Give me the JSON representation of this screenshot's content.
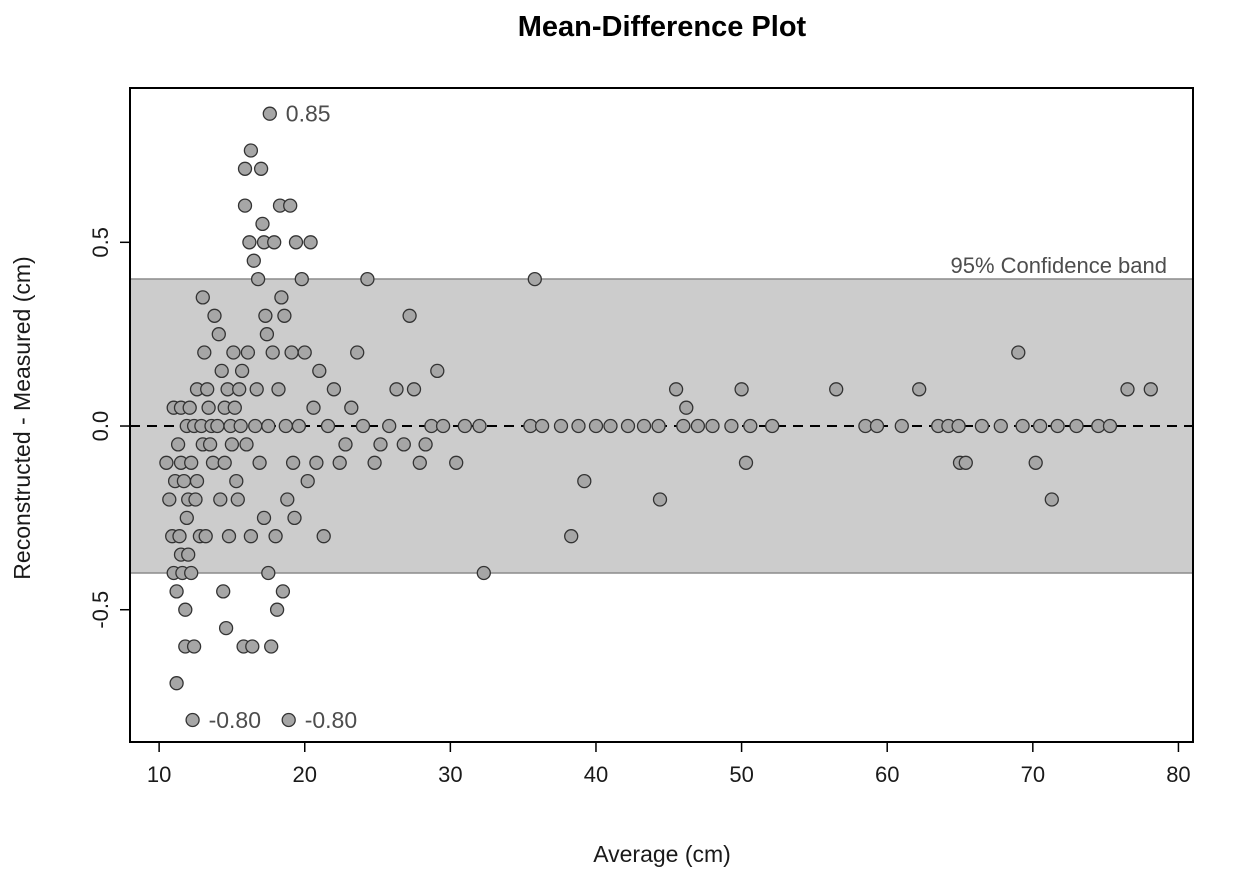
{
  "chart_data": {
    "type": "scatter",
    "title": "Mean-Difference Plot",
    "xlabel": "Average (cm)",
    "ylabel": "Reconstructed - Measured (cm)",
    "xlim": [
      8,
      81
    ],
    "ylim": [
      -0.86,
      0.92
    ],
    "xticks": [
      10,
      20,
      30,
      40,
      50,
      60,
      70,
      80
    ],
    "yticks": [
      -0.5,
      0.0,
      0.5
    ],
    "ytick_labels": [
      "-0.5",
      "0.0",
      "0.5"
    ],
    "grid": false,
    "reference_line": {
      "y": 0,
      "style": "dashed"
    },
    "confidence_band": {
      "lower": -0.4,
      "upper": 0.4,
      "label": "95% Confidence band",
      "color": "#cccccc"
    },
    "annotations": [
      {
        "text": "0.85",
        "x": 17.6,
        "y": 0.85
      },
      {
        "text": "-0.80",
        "x": 12.3,
        "y": -0.8
      },
      {
        "text": "-0.80",
        "x": 18.9,
        "y": -0.8
      }
    ],
    "point_style": {
      "fill": "#a6a6a6",
      "stroke": "#333333"
    },
    "points": [
      [
        10.5,
        -0.1
      ],
      [
        10.7,
        -0.2
      ],
      [
        10.9,
        -0.3
      ],
      [
        11.0,
        0.05
      ],
      [
        11.0,
        -0.4
      ],
      [
        11.1,
        -0.15
      ],
      [
        11.2,
        -0.45
      ],
      [
        11.2,
        -0.7
      ],
      [
        11.3,
        -0.05
      ],
      [
        11.4,
        -0.3
      ],
      [
        11.5,
        0.05
      ],
      [
        11.5,
        -0.1
      ],
      [
        11.5,
        -0.35
      ],
      [
        11.6,
        -0.4
      ],
      [
        11.7,
        -0.15
      ],
      [
        11.8,
        -0.5
      ],
      [
        11.8,
        -0.6
      ],
      [
        11.9,
        0.0
      ],
      [
        11.9,
        -0.25
      ],
      [
        12.0,
        -0.2
      ],
      [
        12.0,
        -0.35
      ],
      [
        12.1,
        0.05
      ],
      [
        12.2,
        -0.1
      ],
      [
        12.2,
        -0.4
      ],
      [
        12.3,
        -0.8
      ],
      [
        12.4,
        0.0
      ],
      [
        12.4,
        -0.6
      ],
      [
        12.5,
        -0.2
      ],
      [
        12.6,
        0.1
      ],
      [
        12.6,
        -0.15
      ],
      [
        12.8,
        -0.3
      ],
      [
        12.9,
        0.0
      ],
      [
        13.0,
        -0.05
      ],
      [
        13.0,
        0.35
      ],
      [
        13.1,
        0.2
      ],
      [
        13.2,
        -0.3
      ],
      [
        13.3,
        0.1
      ],
      [
        13.4,
        0.05
      ],
      [
        13.5,
        -0.05
      ],
      [
        13.6,
        0.0
      ],
      [
        13.7,
        -0.1
      ],
      [
        13.8,
        0.3
      ],
      [
        14.0,
        0.0
      ],
      [
        14.1,
        0.25
      ],
      [
        14.2,
        -0.2
      ],
      [
        14.3,
        0.15
      ],
      [
        14.4,
        -0.45
      ],
      [
        14.5,
        0.05
      ],
      [
        14.5,
        -0.1
      ],
      [
        14.6,
        -0.55
      ],
      [
        14.7,
        0.1
      ],
      [
        14.8,
        -0.3
      ],
      [
        14.9,
        0.0
      ],
      [
        15.0,
        -0.05
      ],
      [
        15.1,
        0.2
      ],
      [
        15.2,
        0.05
      ],
      [
        15.3,
        -0.15
      ],
      [
        15.4,
        -0.2
      ],
      [
        15.5,
        0.1
      ],
      [
        15.6,
        0.0
      ],
      [
        15.7,
        0.15
      ],
      [
        15.8,
        -0.6
      ],
      [
        15.9,
        0.6
      ],
      [
        15.9,
        0.7
      ],
      [
        16.0,
        -0.05
      ],
      [
        16.1,
        0.2
      ],
      [
        16.2,
        0.5
      ],
      [
        16.3,
        0.75
      ],
      [
        16.3,
        -0.3
      ],
      [
        16.4,
        -0.6
      ],
      [
        16.5,
        0.45
      ],
      [
        16.6,
        0.0
      ],
      [
        16.7,
        0.1
      ],
      [
        16.8,
        0.4
      ],
      [
        16.9,
        -0.1
      ],
      [
        17.0,
        0.7
      ],
      [
        17.1,
        0.55
      ],
      [
        17.2,
        0.5
      ],
      [
        17.2,
        -0.25
      ],
      [
        17.3,
        0.3
      ],
      [
        17.4,
        0.25
      ],
      [
        17.5,
        0.0
      ],
      [
        17.5,
        -0.4
      ],
      [
        17.6,
        0.85
      ],
      [
        17.7,
        -0.6
      ],
      [
        17.8,
        0.2
      ],
      [
        17.9,
        0.5
      ],
      [
        18.0,
        -0.3
      ],
      [
        18.1,
        -0.5
      ],
      [
        18.2,
        0.1
      ],
      [
        18.3,
        0.6
      ],
      [
        18.4,
        0.35
      ],
      [
        18.5,
        -0.45
      ],
      [
        18.6,
        0.3
      ],
      [
        18.7,
        0.0
      ],
      [
        18.8,
        -0.2
      ],
      [
        18.9,
        -0.8
      ],
      [
        19.0,
        0.6
      ],
      [
        19.1,
        0.2
      ],
      [
        19.2,
        -0.1
      ],
      [
        19.3,
        -0.25
      ],
      [
        19.4,
        0.5
      ],
      [
        19.6,
        0.0
      ],
      [
        19.8,
        0.4
      ],
      [
        20.0,
        0.2
      ],
      [
        20.2,
        -0.15
      ],
      [
        20.4,
        0.5
      ],
      [
        20.6,
        0.05
      ],
      [
        20.8,
        -0.1
      ],
      [
        21.0,
        0.15
      ],
      [
        21.3,
        -0.3
      ],
      [
        21.6,
        0.0
      ],
      [
        22.0,
        0.1
      ],
      [
        22.4,
        -0.1
      ],
      [
        22.8,
        -0.05
      ],
      [
        23.2,
        0.05
      ],
      [
        23.6,
        0.2
      ],
      [
        24.0,
        0.0
      ],
      [
        24.3,
        0.4
      ],
      [
        24.8,
        -0.1
      ],
      [
        25.2,
        -0.05
      ],
      [
        25.8,
        0.0
      ],
      [
        26.3,
        0.1
      ],
      [
        26.8,
        -0.05
      ],
      [
        27.2,
        0.3
      ],
      [
        27.5,
        0.1
      ],
      [
        27.9,
        -0.1
      ],
      [
        28.3,
        -0.05
      ],
      [
        28.7,
        0.0
      ],
      [
        29.1,
        0.15
      ],
      [
        29.5,
        0.0
      ],
      [
        30.4,
        -0.1
      ],
      [
        31.0,
        0.0
      ],
      [
        32.0,
        0.0
      ],
      [
        32.3,
        -0.4
      ],
      [
        35.5,
        0.0
      ],
      [
        35.8,
        0.4
      ],
      [
        36.3,
        0.0
      ],
      [
        37.6,
        0.0
      ],
      [
        38.3,
        -0.3
      ],
      [
        38.8,
        0.0
      ],
      [
        39.2,
        -0.15
      ],
      [
        40.0,
        0.0
      ],
      [
        41.0,
        0.0
      ],
      [
        42.2,
        0.0
      ],
      [
        43.3,
        0.0
      ],
      [
        44.3,
        0.0
      ],
      [
        44.4,
        -0.2
      ],
      [
        45.5,
        0.1
      ],
      [
        46.0,
        0.0
      ],
      [
        46.2,
        0.05
      ],
      [
        47.0,
        0.0
      ],
      [
        48.0,
        0.0
      ],
      [
        49.3,
        0.0
      ],
      [
        50.0,
        0.1
      ],
      [
        50.3,
        -0.1
      ],
      [
        50.6,
        0.0
      ],
      [
        52.1,
        0.0
      ],
      [
        56.5,
        0.1
      ],
      [
        58.5,
        0.0
      ],
      [
        59.3,
        0.0
      ],
      [
        61.0,
        0.0
      ],
      [
        62.2,
        0.1
      ],
      [
        63.5,
        0.0
      ],
      [
        64.2,
        0.0
      ],
      [
        64.9,
        0.0
      ],
      [
        65.0,
        -0.1
      ],
      [
        65.4,
        -0.1
      ],
      [
        66.5,
        0.0
      ],
      [
        67.8,
        0.0
      ],
      [
        69.0,
        0.2
      ],
      [
        69.3,
        0.0
      ],
      [
        70.2,
        -0.1
      ],
      [
        70.5,
        0.0
      ],
      [
        71.3,
        -0.2
      ],
      [
        71.7,
        0.0
      ],
      [
        73.0,
        0.0
      ],
      [
        74.5,
        0.0
      ],
      [
        75.3,
        0.0
      ],
      [
        76.5,
        0.1
      ],
      [
        78.1,
        0.1
      ]
    ]
  }
}
